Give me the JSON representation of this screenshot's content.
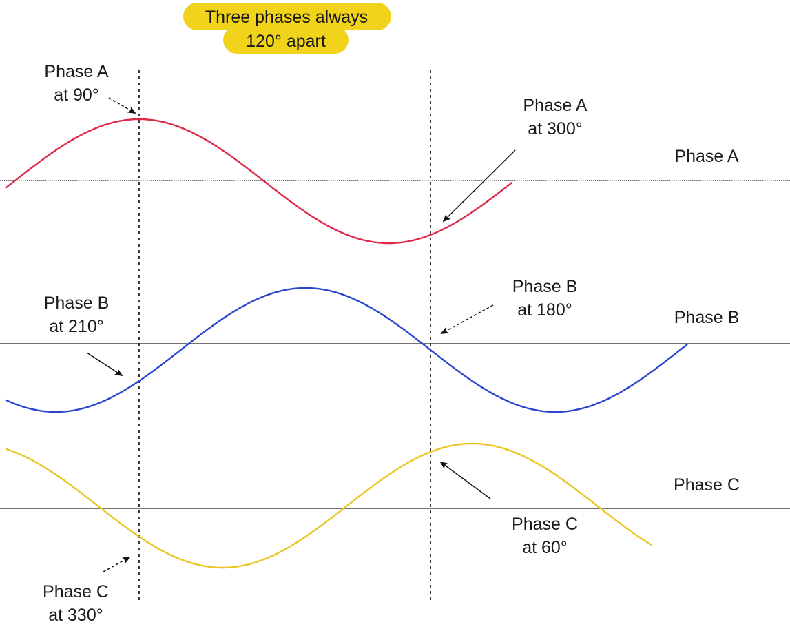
{
  "title": {
    "line1": "Three phases always",
    "line2": "120° apart",
    "highlight_color": "#f2d31b"
  },
  "phases": [
    {
      "name": "Phase A",
      "color": "#e0284a",
      "label": "Phase A"
    },
    {
      "name": "Phase B",
      "color": "#2a45cf",
      "label": "Phase B"
    },
    {
      "name": "Phase C",
      "color": "#ecc423",
      "label": "Phase C"
    }
  ],
  "annotations": {
    "a_left": {
      "line1": "Phase A",
      "line2": "at 90°"
    },
    "a_right": {
      "line1": "Phase A",
      "line2": "at 300°"
    },
    "b_left": {
      "line1": "Phase B",
      "line2": "at 210°"
    },
    "b_right": {
      "line1": "Phase B",
      "line2": "at 180°"
    },
    "c_left": {
      "line1": "Phase C",
      "line2": "at 330°"
    },
    "c_right": {
      "line1": "Phase C",
      "line2": "at 60°"
    }
  }
}
